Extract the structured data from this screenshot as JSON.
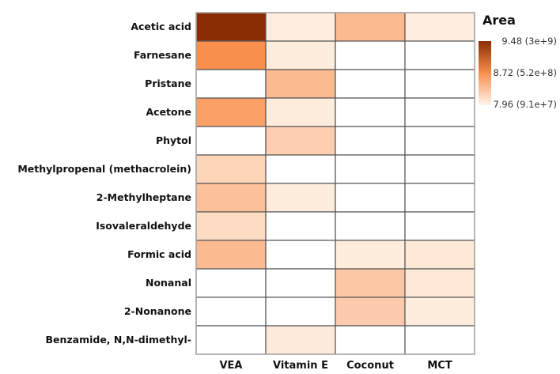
{
  "chart_data": {
    "type": "heatmap",
    "title": "",
    "rows": [
      "Acetic acid",
      "Farnesane",
      "Pristane",
      "Acetone",
      "Phytol",
      "Methylpropenal (methacrolein)",
      "2-Methylheptane",
      "Isovaleraldehyde",
      "Formic acid",
      "Nonanal",
      "2-Nonanone",
      "Benzamide, N,N-dimethyl-"
    ],
    "columns": [
      "VEA",
      "Vitamin E",
      "Coconut",
      "MCT"
    ],
    "values": [
      [
        9.48,
        8.02,
        8.4,
        8.02
      ],
      [
        8.72,
        8.03,
        null,
        null
      ],
      [
        null,
        8.4,
        null,
        null
      ],
      [
        8.6,
        8.03,
        null,
        null
      ],
      [
        null,
        8.25,
        null,
        null
      ],
      [
        8.2,
        null,
        null,
        null
      ],
      [
        8.35,
        8.03,
        null,
        null
      ],
      [
        8.15,
        null,
        null,
        null
      ],
      [
        8.4,
        null,
        8.03,
        8.05
      ],
      [
        null,
        null,
        8.3,
        8.05
      ],
      [
        null,
        null,
        8.27,
        8.03
      ],
      [
        null,
        8.04,
        null,
        null
      ]
    ],
    "legend": {
      "title": "Area",
      "placement": "right",
      "range": [
        7.96,
        9.48
      ],
      "tick_labels": [
        "9.48 (3e+9)",
        "8.72 (5.2e+8)",
        "7.96 (9.1e+7)"
      ],
      "colors": [
        "#fff5eb",
        "#f98f4d",
        "#8b2d04"
      ]
    }
  }
}
